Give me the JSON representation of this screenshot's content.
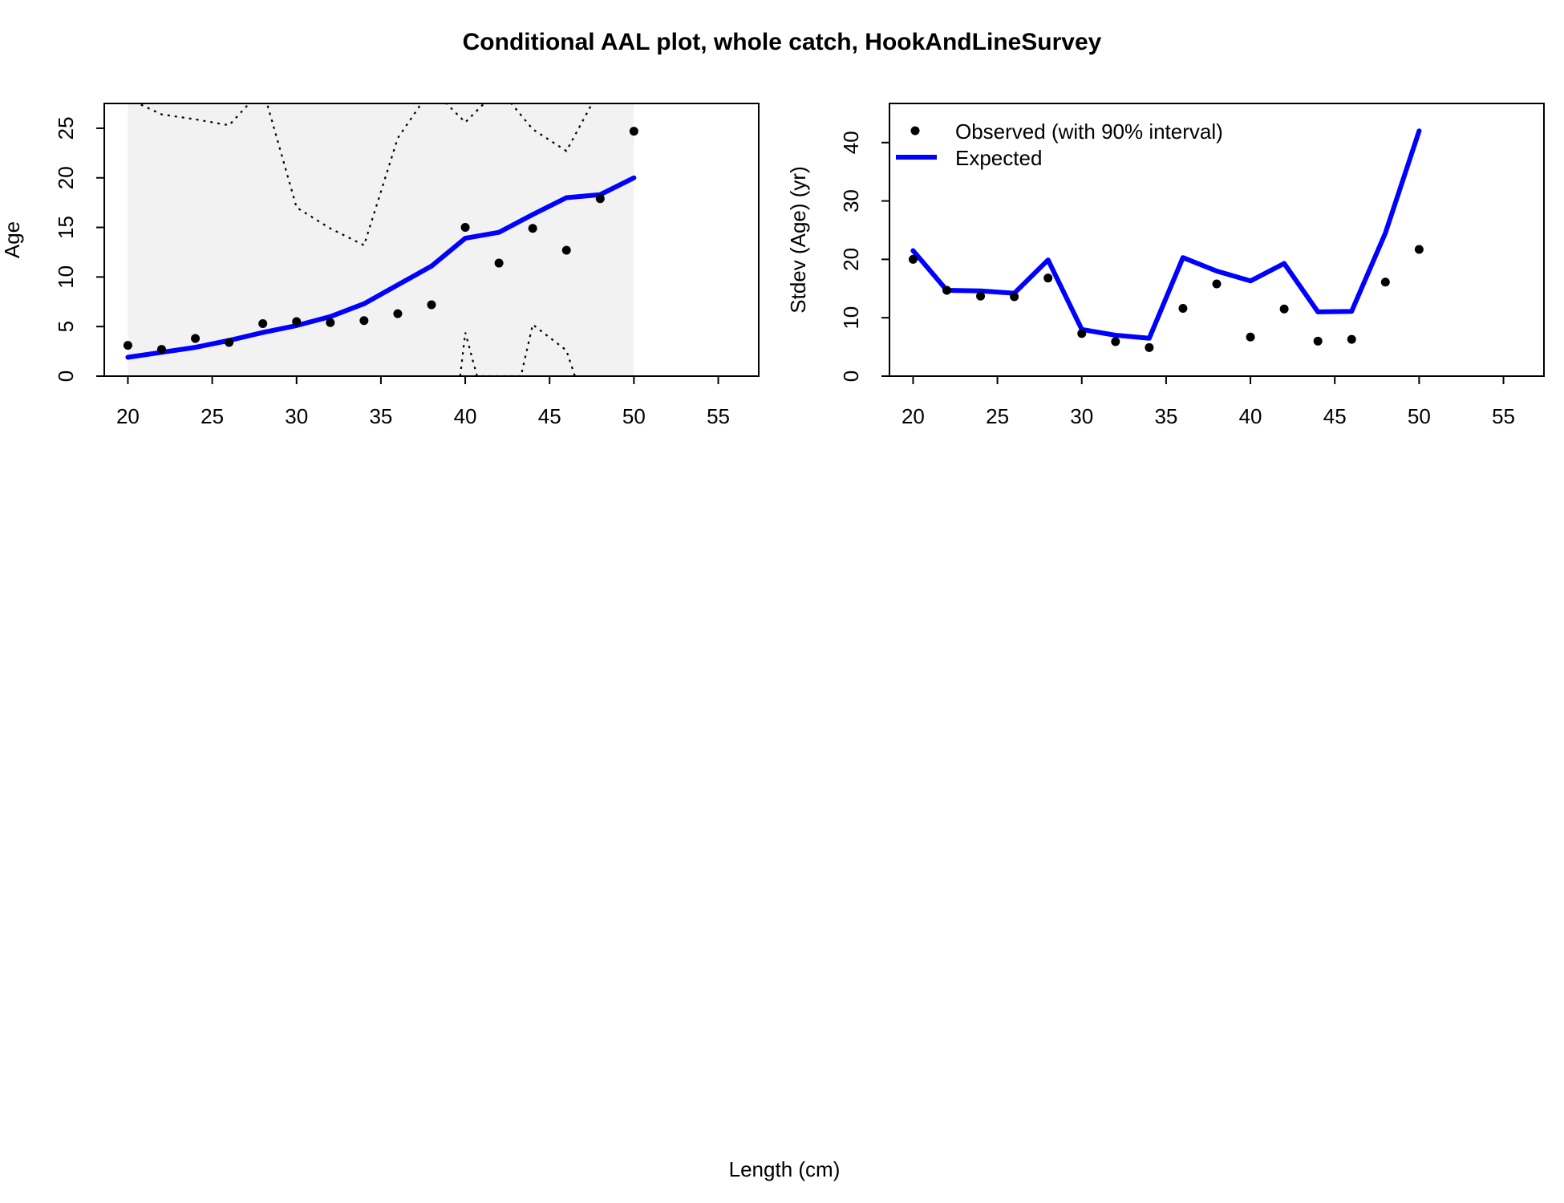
{
  "title": "Conditional AAL plot, whole catch, HookAndLineSurvey",
  "xlabel": "Length (cm)",
  "colors": {
    "expected": "#0000ff",
    "observed": "#000000",
    "shade": "#f2f2f2",
    "axes": "#000000"
  },
  "chart_data": [
    {
      "type": "line",
      "ylabel": "Age",
      "xlim": [
        18.6,
        57.4
      ],
      "ylim": [
        0,
        27.5
      ],
      "xticks": [
        20,
        25,
        30,
        35,
        40,
        45,
        50,
        55
      ],
      "yticks": [
        0,
        5,
        10,
        15,
        20,
        25
      ],
      "shaded_x_range": [
        20,
        50
      ],
      "series": [
        {
          "kind": "points",
          "x": [
            20,
            22,
            24,
            26,
            28,
            30,
            32,
            34,
            36,
            38,
            40,
            42,
            44,
            46,
            48,
            50
          ],
          "values": [
            3.1,
            2.7,
            3.8,
            3.4,
            5.3,
            5.5,
            5.4,
            5.6,
            6.3,
            7.2,
            15.0,
            11.4,
            14.9,
            12.7,
            17.9,
            24.7
          ]
        },
        {
          "kind": "expected_line",
          "x": [
            20,
            22,
            24,
            26,
            28,
            30,
            32,
            34,
            36,
            38,
            40,
            42,
            44,
            46,
            48,
            50
          ],
          "values": [
            1.9,
            2.4,
            2.9,
            3.6,
            4.4,
            5.1,
            6.0,
            7.3,
            9.2,
            11.1,
            13.9,
            14.5,
            16.3,
            18.0,
            18.3,
            20.0
          ]
        },
        {
          "kind": "upper_interval",
          "x": [
            20,
            22,
            24,
            26,
            28,
            30,
            32,
            34,
            36,
            38,
            40,
            42,
            44,
            46,
            48,
            50
          ],
          "values": [
            28.0,
            26.4,
            25.9,
            25.3,
            29.0,
            17.0,
            14.9,
            13.2,
            24.0,
            29.0,
            25.6,
            29.0,
            24.9,
            22.7,
            29.0,
            29.0
          ]
        },
        {
          "kind": "lower_interval",
          "x": [
            39.7,
            40.0,
            40.7,
            43.3,
            44.0,
            46.0,
            46.5
          ],
          "values": [
            0,
            4.4,
            0,
            0,
            5.2,
            2.6,
            0
          ]
        }
      ]
    },
    {
      "type": "line",
      "ylabel": "Stdev (Age) (yr)",
      "xlim": [
        18.6,
        57.4
      ],
      "ylim": [
        0,
        46.7
      ],
      "xticks": [
        20,
        25,
        30,
        35,
        40,
        45,
        50,
        55
      ],
      "yticks": [
        0,
        10,
        20,
        30,
        40
      ],
      "legend_position": "top-left",
      "legend": [
        "Observed (with 90% interval)",
        "Expected"
      ],
      "series": [
        {
          "name": "Observed (with 90% interval)",
          "kind": "points",
          "x": [
            20,
            22,
            24,
            26,
            28,
            30,
            32,
            34,
            36,
            38,
            40,
            42,
            44,
            46,
            48,
            50
          ],
          "values": [
            20.0,
            14.7,
            13.7,
            13.6,
            16.8,
            7.3,
            5.9,
            4.9,
            11.6,
            15.8,
            6.7,
            11.5,
            6.0,
            6.3,
            16.1,
            21.7
          ]
        },
        {
          "name": "Expected",
          "kind": "expected_line",
          "x": [
            20,
            22,
            24,
            26,
            28,
            30,
            32,
            34,
            36,
            38,
            40,
            42,
            44,
            46,
            48,
            50
          ],
          "values": [
            21.5,
            14.7,
            14.6,
            14.2,
            19.9,
            8.0,
            7.0,
            6.5,
            20.3,
            18.0,
            16.3,
            19.3,
            11.0,
            11.1,
            24.5,
            42.0
          ]
        }
      ]
    }
  ]
}
